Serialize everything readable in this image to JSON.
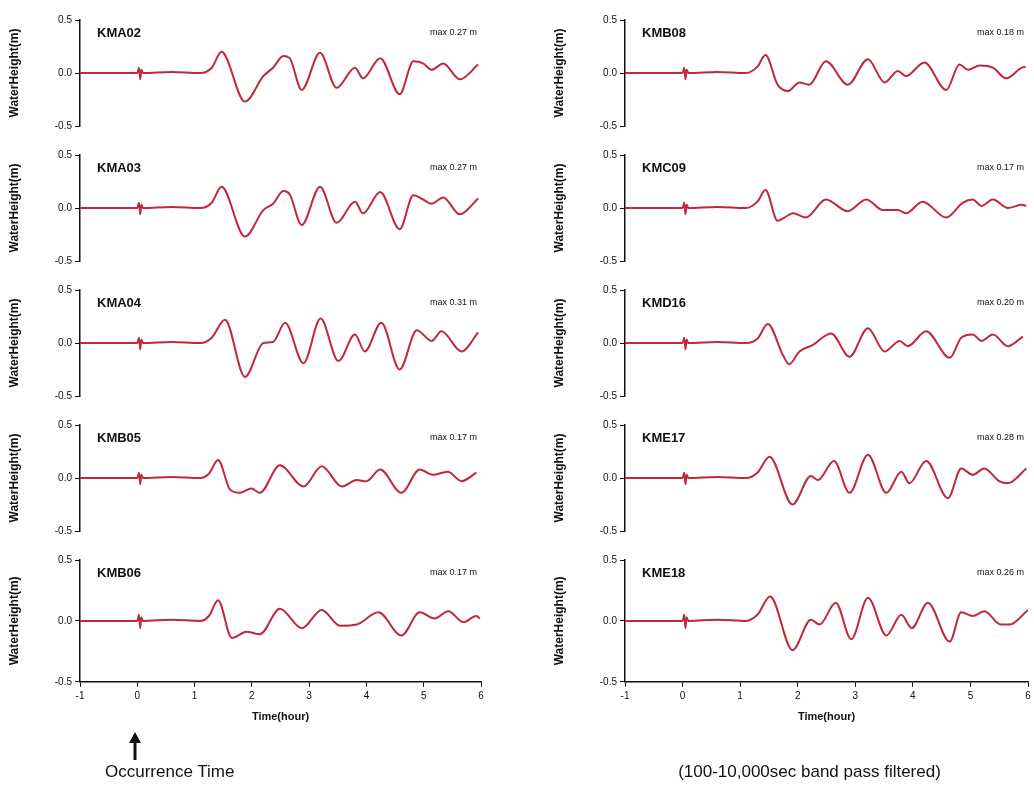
{
  "chart_data": [
    {
      "type": "line",
      "title": "KMA02",
      "annotations": [
        "max 0.27 m"
      ],
      "ylabel": "WaterHeight(m)",
      "xlim": [
        -1,
        6
      ],
      "ylim": [
        -0.5,
        0.5
      ],
      "yticks": [
        {
          "value": -0.5,
          "label": "-0.5"
        },
        {
          "value": 0,
          "label": "0.0"
        },
        {
          "value": 0.5,
          "label": "0.5"
        }
      ],
      "tick_labels": "y",
      "marker": "none",
      "x": [
        -1,
        0,
        0.03,
        0.05,
        0.07,
        0.1,
        0.6,
        1.1,
        1.3,
        1.47,
        1.88,
        2.2,
        2.37,
        2.55,
        2.66,
        2.87,
        3.19,
        3.48,
        3.8,
        3.94,
        4.24,
        4.58,
        4.82,
        4.99,
        5.14,
        5.34,
        5.63,
        5.95
      ],
      "series": [
        {
          "color": "#c0283c",
          "values": [
            0,
            0,
            0.05,
            -0.06,
            0.03,
            0,
            0.01,
            0,
            0.05,
            0.2,
            -0.27,
            -0.03,
            0.05,
            0.16,
            0.14,
            -0.16,
            0.19,
            -0.14,
            0.05,
            -0.05,
            0.14,
            -0.2,
            0.11,
            0.09,
            0.03,
            0.09,
            -0.06,
            0.08
          ]
        }
      ]
    },
    {
      "type": "line",
      "title": "KMB08",
      "annotations": [
        "max 0.18 m"
      ],
      "ylabel": "WaterHeight(m)",
      "xlim": [
        -1,
        6
      ],
      "ylim": [
        -0.5,
        0.5
      ],
      "yticks": [
        {
          "value": -0.5,
          "label": "-0.5"
        },
        {
          "value": 0,
          "label": "0.0"
        },
        {
          "value": 0.5,
          "label": "0.5"
        }
      ],
      "tick_labels": "y",
      "marker": "none",
      "x": [
        -1,
        0,
        0.03,
        0.05,
        0.07,
        0.1,
        0.6,
        1.1,
        1.3,
        1.44,
        1.65,
        1.83,
        2.03,
        2.2,
        2.49,
        2.87,
        3.22,
        3.51,
        3.74,
        3.88,
        4.2,
        4.58,
        4.81,
        4.96,
        5.16,
        5.39,
        5.62,
        5.89,
        5.96
      ],
      "series": [
        {
          "color": "#c0283c",
          "values": [
            0,
            0,
            0.05,
            -0.06,
            0.03,
            0,
            0.01,
            0,
            0.06,
            0.17,
            -0.11,
            -0.17,
            -0.09,
            -0.11,
            0.11,
            -0.11,
            0.13,
            -0.09,
            0.02,
            -0.03,
            0.1,
            -0.16,
            0.08,
            0.03,
            0.07,
            0.05,
            -0.05,
            0.05,
            0.06
          ]
        }
      ]
    },
    {
      "type": "line",
      "title": "KMA03",
      "annotations": [
        "max 0.27 m"
      ],
      "ylabel": "WaterHeight(m)",
      "xlim": [
        -1,
        6
      ],
      "ylim": [
        -0.5,
        0.5
      ],
      "yticks": [
        {
          "value": -0.5,
          "label": "-0.5"
        },
        {
          "value": 0,
          "label": "0.0"
        },
        {
          "value": 0.5,
          "label": "0.5"
        }
      ],
      "tick_labels": "y",
      "marker": "none",
      "x": [
        -1,
        0,
        0.03,
        0.05,
        0.07,
        0.1,
        0.6,
        1.1,
        1.3,
        1.47,
        1.88,
        2.2,
        2.37,
        2.55,
        2.66,
        2.87,
        3.19,
        3.48,
        3.8,
        3.94,
        4.24,
        4.58,
        4.82,
        4.99,
        5.14,
        5.34,
        5.63,
        5.95
      ],
      "series": [
        {
          "color": "#c0283c",
          "values": [
            0,
            0,
            0.05,
            -0.06,
            0.03,
            0,
            0.01,
            0,
            0.05,
            0.2,
            -0.27,
            -0.02,
            0.04,
            0.16,
            0.13,
            -0.16,
            0.2,
            -0.14,
            0.06,
            -0.05,
            0.15,
            -0.2,
            0.12,
            0.08,
            0.04,
            0.1,
            -0.06,
            0.09
          ]
        }
      ]
    },
    {
      "type": "line",
      "title": "KMC09",
      "annotations": [
        "max 0.17 m"
      ],
      "ylabel": "WaterHeight(m)",
      "xlim": [
        -1,
        6
      ],
      "ylim": [
        -0.5,
        0.5
      ],
      "yticks": [
        {
          "value": -0.5,
          "label": "-0.5"
        },
        {
          "value": 0,
          "label": "0.0"
        },
        {
          "value": 0.5,
          "label": "0.5"
        }
      ],
      "tick_labels": "y",
      "marker": "none",
      "x": [
        -1,
        0,
        0.03,
        0.05,
        0.07,
        0.1,
        0.6,
        1.1,
        1.3,
        1.44,
        1.65,
        1.77,
        1.92,
        2.14,
        2.49,
        2.87,
        3.19,
        3.48,
        3.74,
        3.88,
        4.17,
        4.58,
        4.87,
        5.04,
        5.19,
        5.39,
        5.65,
        5.89,
        5.97
      ],
      "series": [
        {
          "color": "#c0283c",
          "values": [
            0,
            0,
            0.05,
            -0.06,
            0.03,
            0,
            0.01,
            0,
            0.06,
            0.17,
            -0.12,
            -0.09,
            -0.05,
            -0.09,
            0.08,
            -0.03,
            0.08,
            -0.02,
            -0.02,
            -0.05,
            0.06,
            -0.09,
            0.05,
            0.08,
            0.02,
            0.08,
            0,
            0.03,
            0.02
          ]
        }
      ]
    },
    {
      "type": "line",
      "title": "KMA04",
      "annotations": [
        "max 0.31 m"
      ],
      "ylabel": "WaterHeight(m)",
      "xlim": [
        -1,
        6
      ],
      "ylim": [
        -0.5,
        0.5
      ],
      "yticks": [
        {
          "value": -0.5,
          "label": "-0.5"
        },
        {
          "value": 0,
          "label": "0.0"
        },
        {
          "value": 0.5,
          "label": "0.5"
        }
      ],
      "tick_labels": "y",
      "marker": "none",
      "x": [
        -1,
        0,
        0.03,
        0.05,
        0.07,
        0.1,
        0.6,
        1.1,
        1.3,
        1.53,
        1.88,
        2.2,
        2.37,
        2.58,
        2.9,
        3.2,
        3.51,
        3.8,
        3.97,
        4.26,
        4.58,
        4.88,
        5.14,
        5.31,
        5.66,
        5.95
      ],
      "series": [
        {
          "color": "#c0283c",
          "values": [
            0,
            0,
            0.05,
            -0.06,
            0.03,
            0,
            0.01,
            0,
            0.05,
            0.22,
            -0.32,
            0,
            0.01,
            0.19,
            -0.19,
            0.23,
            -0.17,
            0.08,
            -0.08,
            0.19,
            -0.25,
            0.12,
            0.02,
            0.11,
            -0.08,
            0.1
          ]
        }
      ]
    },
    {
      "type": "line",
      "title": "KMD16",
      "annotations": [
        "max 0.20 m"
      ],
      "ylabel": "WaterHeight(m)",
      "xlim": [
        -1,
        6
      ],
      "ylim": [
        -0.5,
        0.5
      ],
      "yticks": [
        {
          "value": -0.5,
          "label": "-0.5"
        },
        {
          "value": 0,
          "label": "0.0"
        },
        {
          "value": 0.5,
          "label": "0.5"
        }
      ],
      "tick_labels": "y",
      "marker": "none",
      "x": [
        -1,
        0,
        0.03,
        0.05,
        0.07,
        0.1,
        0.6,
        1.1,
        1.3,
        1.48,
        1.74,
        1.85,
        2.03,
        2.26,
        2.58,
        2.9,
        3.22,
        3.51,
        3.77,
        3.91,
        4.23,
        4.64,
        4.84,
        5.04,
        5.19,
        5.39,
        5.65,
        5.91
      ],
      "series": [
        {
          "color": "#c0283c",
          "values": [
            0,
            0,
            0.05,
            -0.06,
            0.03,
            0,
            0.01,
            0,
            0.04,
            0.18,
            -0.11,
            -0.2,
            -0.08,
            -0.02,
            0.09,
            -0.13,
            0.14,
            -0.08,
            0.02,
            -0.03,
            0.11,
            -0.14,
            0.05,
            0.08,
            0.02,
            0.08,
            -0.03,
            0.06
          ]
        }
      ]
    },
    {
      "type": "line",
      "title": "KMB05",
      "annotations": [
        "max 0.17 m"
      ],
      "ylabel": "WaterHeight(m)",
      "xlim": [
        -1,
        6
      ],
      "ylim": [
        -0.5,
        0.5
      ],
      "yticks": [
        {
          "value": -0.5,
          "label": "-0.5"
        },
        {
          "value": 0,
          "label": "0.0"
        },
        {
          "value": 0.5,
          "label": "0.5"
        }
      ],
      "tick_labels": "y",
      "marker": "none",
      "x": [
        -1,
        0,
        0.03,
        0.05,
        0.07,
        0.1,
        0.6,
        1.1,
        1.25,
        1.41,
        1.62,
        1.79,
        1.99,
        2.14,
        2.49,
        2.9,
        3.22,
        3.57,
        3.83,
        4.0,
        4.24,
        4.61,
        4.93,
        5.16,
        5.42,
        5.66,
        5.92
      ],
      "series": [
        {
          "color": "#c0283c",
          "values": [
            0,
            0,
            0.05,
            -0.06,
            0.03,
            0,
            0.01,
            0,
            0.04,
            0.17,
            -0.11,
            -0.14,
            -0.1,
            -0.14,
            0.12,
            -0.08,
            0.11,
            -0.08,
            -0.02,
            -0.03,
            0.08,
            -0.14,
            0.08,
            0.03,
            0.06,
            -0.03,
            0.05
          ]
        }
      ]
    },
    {
      "type": "line",
      "title": "KME17",
      "annotations": [
        "max 0.28 m"
      ],
      "ylabel": "WaterHeight(m)",
      "xlim": [
        -1,
        6
      ],
      "ylim": [
        -0.5,
        0.5
      ],
      "yticks": [
        {
          "value": -0.5,
          "label": "-0.5"
        },
        {
          "value": 0,
          "label": "0.0"
        },
        {
          "value": 0.5,
          "label": "0.5"
        }
      ],
      "tick_labels": "y",
      "marker": "none",
      "x": [
        -1,
        0,
        0.03,
        0.05,
        0.07,
        0.1,
        0.6,
        1.1,
        1.3,
        1.51,
        1.91,
        2.23,
        2.35,
        2.63,
        2.9,
        3.22,
        3.54,
        3.8,
        3.94,
        4.23,
        4.61,
        4.84,
        5.04,
        5.24,
        5.5,
        5.65,
        5.97
      ],
      "series": [
        {
          "color": "#c0283c",
          "values": [
            0,
            0,
            0.05,
            -0.06,
            0.03,
            0,
            0.01,
            0,
            0.05,
            0.2,
            -0.25,
            0.02,
            -0.02,
            0.16,
            -0.14,
            0.22,
            -0.14,
            0.06,
            -0.05,
            0.16,
            -0.19,
            0.09,
            0.03,
            0.09,
            -0.03,
            -0.05,
            0.09
          ]
        }
      ]
    },
    {
      "type": "line",
      "title": "KMB06",
      "annotations": [
        "max 0.17 m",
        "Occurrence Time"
      ],
      "ylabel": "WaterHeight(m)",
      "xlabel": "Time(hour)",
      "xlim": [
        -1,
        6
      ],
      "xticks": [
        -1,
        0,
        1,
        2,
        3,
        4,
        5,
        6
      ],
      "ylim": [
        -0.5,
        0.5
      ],
      "yticks": [
        {
          "value": -0.5,
          "label": "-0.5"
        },
        {
          "value": 0,
          "label": "0.0"
        },
        {
          "value": 0.5,
          "label": "0.5"
        }
      ],
      "marker": "none",
      "x": [
        -1,
        0,
        0.03,
        0.05,
        0.07,
        0.1,
        0.6,
        1.1,
        1.25,
        1.41,
        1.65,
        1.91,
        2.14,
        2.49,
        2.87,
        3.22,
        3.54,
        3.83,
        4.21,
        4.61,
        4.93,
        5.19,
        5.43,
        5.69,
        5.92,
        5.98
      ],
      "series": [
        {
          "color": "#c0283c",
          "values": [
            0,
            0,
            0.05,
            -0.06,
            0.03,
            0,
            0.01,
            0,
            0.04,
            0.17,
            -0.14,
            -0.09,
            -0.11,
            0.1,
            -0.06,
            0.09,
            -0.04,
            -0.03,
            0.07,
            -0.12,
            0.07,
            0.02,
            0.08,
            -0.01,
            0.04,
            0.02
          ]
        }
      ]
    },
    {
      "type": "line",
      "title": "KME18",
      "annotations": [
        "max 0.26 m",
        "(100-10,000sec band pass filtered)"
      ],
      "ylabel": "WaterHeight(m)",
      "xlabel": "Time(hour)",
      "xlim": [
        -1,
        6
      ],
      "xticks": [
        -1,
        0,
        1,
        2,
        3,
        4,
        5,
        6
      ],
      "ylim": [
        -0.5,
        0.5
      ],
      "yticks": [
        {
          "value": -0.5,
          "label": "-0.5"
        },
        {
          "value": 0,
          "label": "0.0"
        },
        {
          "value": 0.5,
          "label": "0.5"
        }
      ],
      "marker": "none",
      "x": [
        -1,
        0,
        0.03,
        0.05,
        0.07,
        0.1,
        0.6,
        1.1,
        1.3,
        1.52,
        1.91,
        2.23,
        2.38,
        2.66,
        2.93,
        3.22,
        3.54,
        3.8,
        3.98,
        4.26,
        4.64,
        4.84,
        5.04,
        5.24,
        5.53,
        5.68,
        6
      ],
      "series": [
        {
          "color": "#c0283c",
          "values": [
            0,
            0,
            0.05,
            -0.06,
            0.03,
            0,
            0.01,
            0,
            0.05,
            0.2,
            -0.24,
            0.01,
            -0.03,
            0.15,
            -0.15,
            0.19,
            -0.12,
            0.05,
            -0.06,
            0.15,
            -0.17,
            0.07,
            0.04,
            0.08,
            -0.03,
            -0.03,
            0.09
          ]
        }
      ]
    }
  ]
}
